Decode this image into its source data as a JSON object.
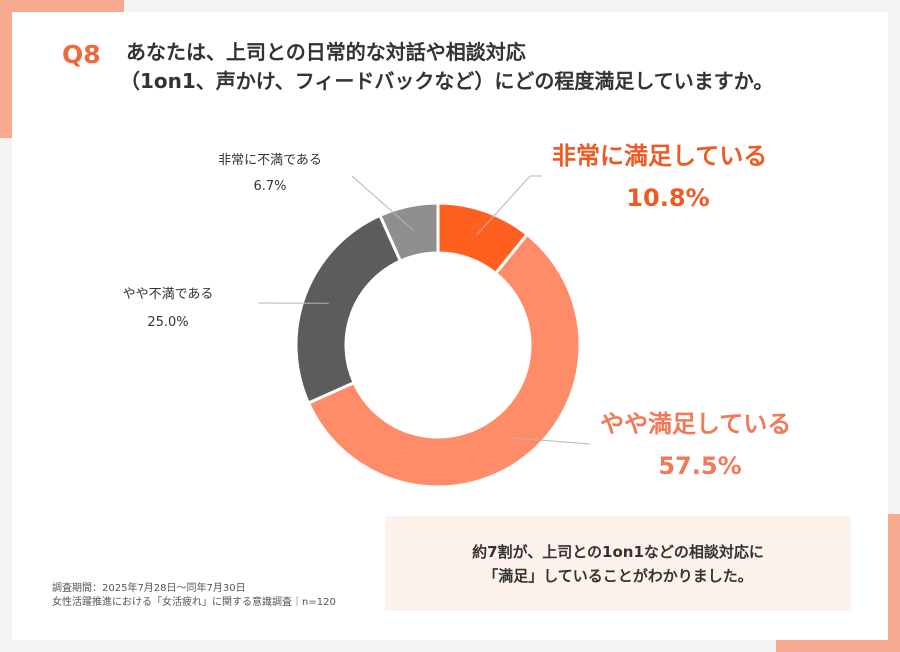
{
  "question": {
    "number": "Q8",
    "line1": "あなたは、上司との日常的な対話や相談対応",
    "line2": "（1on1、声かけ、フィードバックなど）にどの程度満足していますか。"
  },
  "chart_data": {
    "type": "pie",
    "style": "donut",
    "categories": [
      "非常に満足している",
      "やや満足している",
      "やや不満である",
      "非常に不満である"
    ],
    "values": [
      10.8,
      57.5,
      25.0,
      6.7
    ],
    "value_labels": [
      "10.8%",
      "57.5%",
      "25.0%",
      "6.7%"
    ],
    "colors": [
      "#ff5f1f",
      "#ff8c69",
      "#5c5c5c",
      "#8f8f8f"
    ],
    "label_colors": [
      "#ee5a24",
      "#f07a58",
      "#333333",
      "#333333"
    ]
  },
  "summary": {
    "line1": "約7割が、上司との1on1などの相談対応に",
    "line2": "「満足」していることがわかりました。"
  },
  "footnote": {
    "line1": "調査期間：2025年7月28日～同年7月30日",
    "line2": "女性活躍推進における「女活疲れ」に関する意識調査｜n=120"
  }
}
